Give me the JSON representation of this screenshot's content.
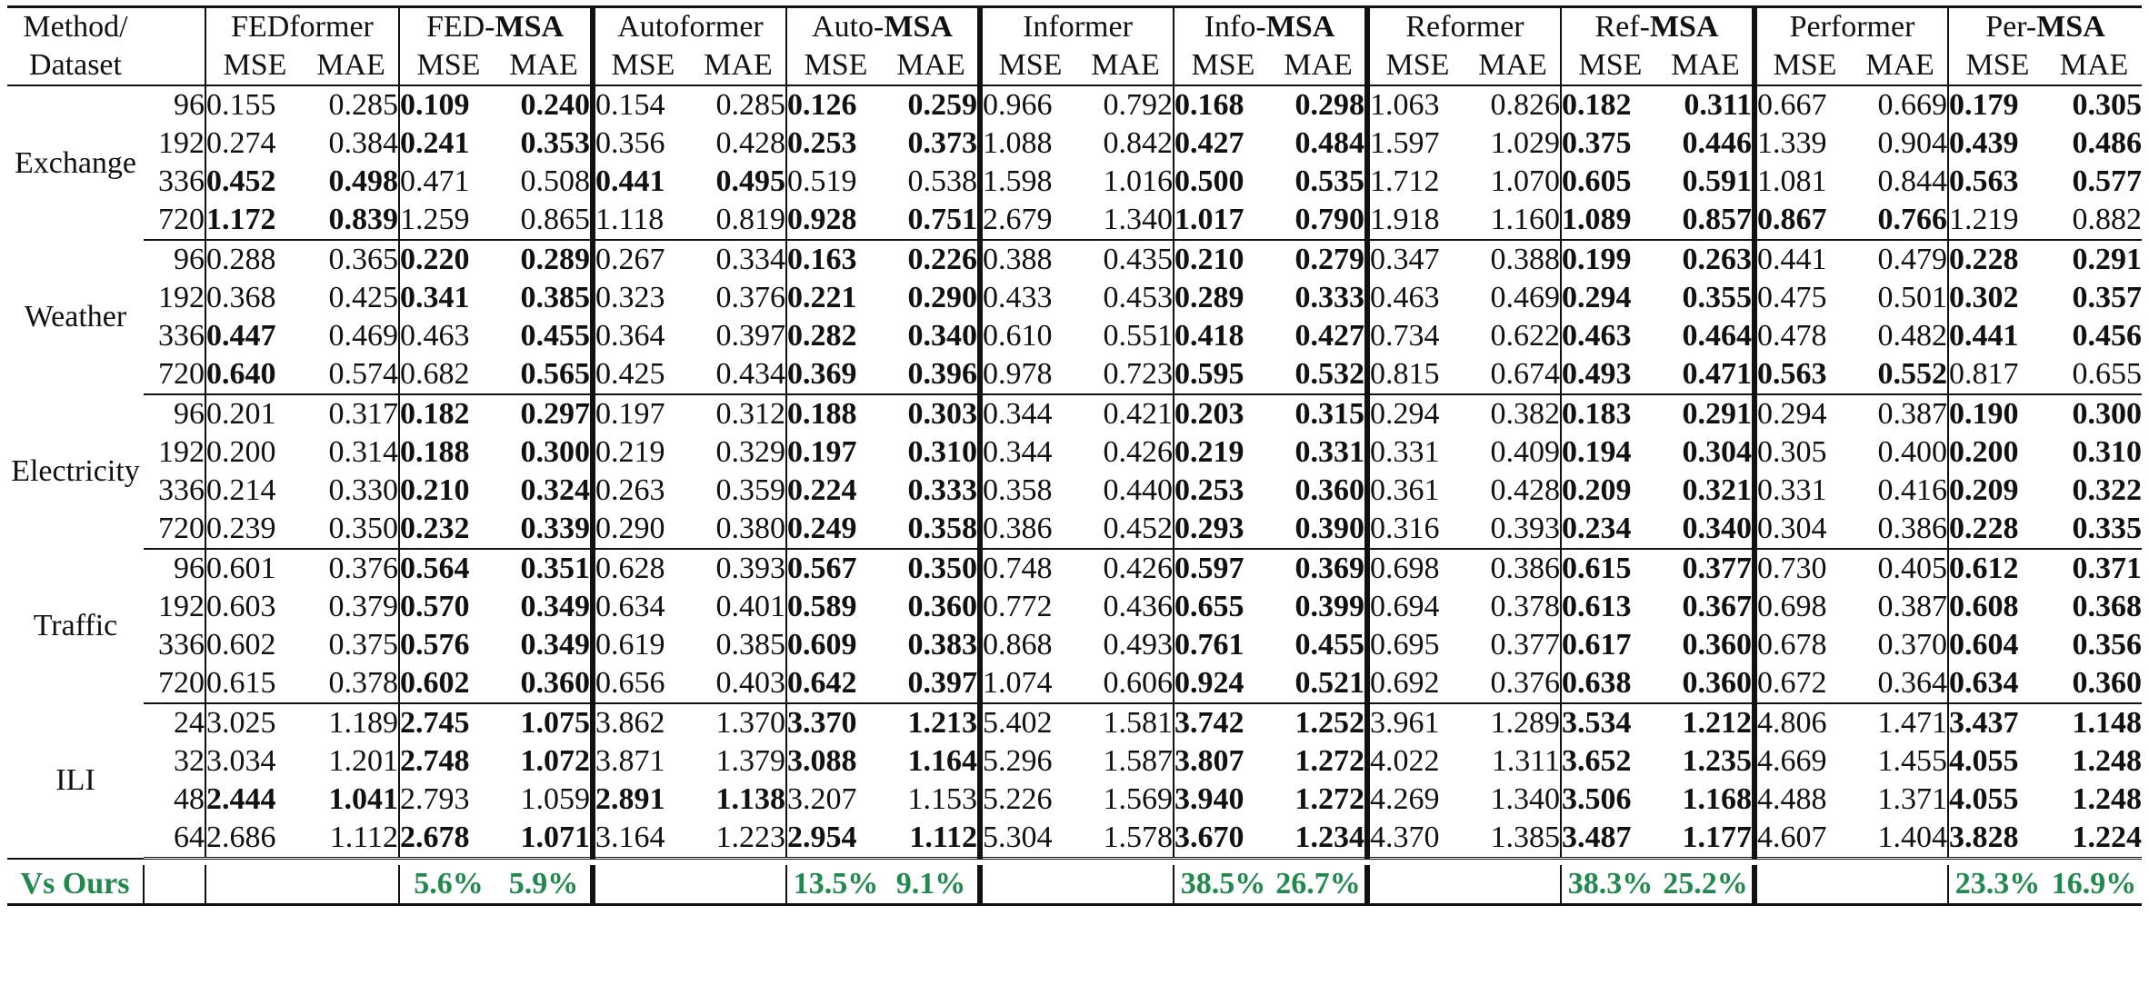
{
  "header": {
    "method_label_line1": "Method/",
    "method_label_line2": "Dataset",
    "mse_label": "MSE",
    "mae_label": "MAE",
    "groups": [
      {
        "name_prefix": "FEDformer",
        "name_bold": ""
      },
      {
        "name_prefix": "FED-",
        "name_bold": "MSA"
      },
      {
        "name_prefix": "Autoformer",
        "name_bold": ""
      },
      {
        "name_prefix": "Auto-",
        "name_bold": "MSA"
      },
      {
        "name_prefix": "Informer",
        "name_bold": ""
      },
      {
        "name_prefix": "Info-",
        "name_bold": "MSA"
      },
      {
        "name_prefix": "Reformer",
        "name_bold": ""
      },
      {
        "name_prefix": "Ref-",
        "name_bold": "MSA"
      },
      {
        "name_prefix": "Performer",
        "name_bold": ""
      },
      {
        "name_prefix": "Per-",
        "name_bold": "MSA"
      }
    ]
  },
  "datasets": [
    {
      "name": "Exchange",
      "rows": [
        {
          "len": "96",
          "vals": [
            "0.155",
            "0.285",
            "0.109",
            "0.240",
            "0.154",
            "0.285",
            "0.126",
            "0.259",
            "0.966",
            "0.792",
            "0.168",
            "0.298",
            "1.063",
            "0.826",
            "0.182",
            "0.311",
            "0.667",
            "0.669",
            "0.179",
            "0.305"
          ],
          "bold": [
            false,
            false,
            true,
            true,
            false,
            false,
            true,
            true,
            false,
            false,
            true,
            true,
            false,
            false,
            true,
            true,
            false,
            false,
            true,
            true
          ]
        },
        {
          "len": "192",
          "vals": [
            "0.274",
            "0.384",
            "0.241",
            "0.353",
            "0.356",
            "0.428",
            "0.253",
            "0.373",
            "1.088",
            "0.842",
            "0.427",
            "0.484",
            "1.597",
            "1.029",
            "0.375",
            "0.446",
            "1.339",
            "0.904",
            "0.439",
            "0.486"
          ],
          "bold": [
            false,
            false,
            true,
            true,
            false,
            false,
            true,
            true,
            false,
            false,
            true,
            true,
            false,
            false,
            true,
            true,
            false,
            false,
            true,
            true
          ]
        },
        {
          "len": "336",
          "vals": [
            "0.452",
            "0.498",
            "0.471",
            "0.508",
            "0.441",
            "0.495",
            "0.519",
            "0.538",
            "1.598",
            "1.016",
            "0.500",
            "0.535",
            "1.712",
            "1.070",
            "0.605",
            "0.591",
            "1.081",
            "0.844",
            "0.563",
            "0.577"
          ],
          "bold": [
            true,
            true,
            false,
            false,
            true,
            true,
            false,
            false,
            false,
            false,
            true,
            true,
            false,
            false,
            true,
            true,
            false,
            false,
            true,
            true
          ]
        },
        {
          "len": "720",
          "vals": [
            "1.172",
            "0.839",
            "1.259",
            "0.865",
            "1.118",
            "0.819",
            "0.928",
            "0.751",
            "2.679",
            "1.340",
            "1.017",
            "0.790",
            "1.918",
            "1.160",
            "1.089",
            "0.857",
            "0.867",
            "0.766",
            "1.219",
            "0.882"
          ],
          "bold": [
            true,
            true,
            false,
            false,
            false,
            false,
            true,
            true,
            false,
            false,
            true,
            true,
            false,
            false,
            true,
            true,
            true,
            true,
            false,
            false
          ]
        }
      ]
    },
    {
      "name": "Weather",
      "rows": [
        {
          "len": "96",
          "vals": [
            "0.288",
            "0.365",
            "0.220",
            "0.289",
            "0.267",
            "0.334",
            "0.163",
            "0.226",
            "0.388",
            "0.435",
            "0.210",
            "0.279",
            "0.347",
            "0.388",
            "0.199",
            "0.263",
            "0.441",
            "0.479",
            "0.228",
            "0.291"
          ],
          "bold": [
            false,
            false,
            true,
            true,
            false,
            false,
            true,
            true,
            false,
            false,
            true,
            true,
            false,
            false,
            true,
            true,
            false,
            false,
            true,
            true
          ]
        },
        {
          "len": "192",
          "vals": [
            "0.368",
            "0.425",
            "0.341",
            "0.385",
            "0.323",
            "0.376",
            "0.221",
            "0.290",
            "0.433",
            "0.453",
            "0.289",
            "0.333",
            "0.463",
            "0.469",
            "0.294",
            "0.355",
            "0.475",
            "0.501",
            "0.302",
            "0.357"
          ],
          "bold": [
            false,
            false,
            true,
            true,
            false,
            false,
            true,
            true,
            false,
            false,
            true,
            true,
            false,
            false,
            true,
            true,
            false,
            false,
            true,
            true
          ]
        },
        {
          "len": "336",
          "vals": [
            "0.447",
            "0.469",
            "0.463",
            "0.455",
            "0.364",
            "0.397",
            "0.282",
            "0.340",
            "0.610",
            "0.551",
            "0.418",
            "0.427",
            "0.734",
            "0.622",
            "0.463",
            "0.464",
            "0.478",
            "0.482",
            "0.441",
            "0.456"
          ],
          "bold": [
            true,
            false,
            false,
            true,
            false,
            false,
            true,
            true,
            false,
            false,
            true,
            true,
            false,
            false,
            true,
            true,
            false,
            false,
            true,
            true
          ]
        },
        {
          "len": "720",
          "vals": [
            "0.640",
            "0.574",
            "0.682",
            "0.565",
            "0.425",
            "0.434",
            "0.369",
            "0.396",
            "0.978",
            "0.723",
            "0.595",
            "0.532",
            "0.815",
            "0.674",
            "0.493",
            "0.471",
            "0.563",
            "0.552",
            "0.817",
            "0.655"
          ],
          "bold": [
            true,
            false,
            false,
            true,
            false,
            false,
            true,
            true,
            false,
            false,
            true,
            true,
            false,
            false,
            true,
            true,
            true,
            true,
            false,
            false
          ]
        }
      ]
    },
    {
      "name": "Electricity",
      "rows": [
        {
          "len": "96",
          "vals": [
            "0.201",
            "0.317",
            "0.182",
            "0.297",
            "0.197",
            "0.312",
            "0.188",
            "0.303",
            "0.344",
            "0.421",
            "0.203",
            "0.315",
            "0.294",
            "0.382",
            "0.183",
            "0.291",
            "0.294",
            "0.387",
            "0.190",
            "0.300"
          ],
          "bold": [
            false,
            false,
            true,
            true,
            false,
            false,
            true,
            true,
            false,
            false,
            true,
            true,
            false,
            false,
            true,
            true,
            false,
            false,
            true,
            true
          ]
        },
        {
          "len": "192",
          "vals": [
            "0.200",
            "0.314",
            "0.188",
            "0.300",
            "0.219",
            "0.329",
            "0.197",
            "0.310",
            "0.344",
            "0.426",
            "0.219",
            "0.331",
            "0.331",
            "0.409",
            "0.194",
            "0.304",
            "0.305",
            "0.400",
            "0.200",
            "0.310"
          ],
          "bold": [
            false,
            false,
            true,
            true,
            false,
            false,
            true,
            true,
            false,
            false,
            true,
            true,
            false,
            false,
            true,
            true,
            false,
            false,
            true,
            true
          ]
        },
        {
          "len": "336",
          "vals": [
            "0.214",
            "0.330",
            "0.210",
            "0.324",
            "0.263",
            "0.359",
            "0.224",
            "0.333",
            "0.358",
            "0.440",
            "0.253",
            "0.360",
            "0.361",
            "0.428",
            "0.209",
            "0.321",
            "0.331",
            "0.416",
            "0.209",
            "0.322"
          ],
          "bold": [
            false,
            false,
            true,
            true,
            false,
            false,
            true,
            true,
            false,
            false,
            true,
            true,
            false,
            false,
            true,
            true,
            false,
            false,
            true,
            true
          ]
        },
        {
          "len": "720",
          "vals": [
            "0.239",
            "0.350",
            "0.232",
            "0.339",
            "0.290",
            "0.380",
            "0.249",
            "0.358",
            "0.386",
            "0.452",
            "0.293",
            "0.390",
            "0.316",
            "0.393",
            "0.234",
            "0.340",
            "0.304",
            "0.386",
            "0.228",
            "0.335"
          ],
          "bold": [
            false,
            false,
            true,
            true,
            false,
            false,
            true,
            true,
            false,
            false,
            true,
            true,
            false,
            false,
            true,
            true,
            false,
            false,
            true,
            true
          ]
        }
      ]
    },
    {
      "name": "Traffic",
      "rows": [
        {
          "len": "96",
          "vals": [
            "0.601",
            "0.376",
            "0.564",
            "0.351",
            "0.628",
            "0.393",
            "0.567",
            "0.350",
            "0.748",
            "0.426",
            "0.597",
            "0.369",
            "0.698",
            "0.386",
            "0.615",
            "0.377",
            "0.730",
            "0.405",
            "0.612",
            "0.371"
          ],
          "bold": [
            false,
            false,
            true,
            true,
            false,
            false,
            true,
            true,
            false,
            false,
            true,
            true,
            false,
            false,
            true,
            true,
            false,
            false,
            true,
            true
          ]
        },
        {
          "len": "192",
          "vals": [
            "0.603",
            "0.379",
            "0.570",
            "0.349",
            "0.634",
            "0.401",
            "0.589",
            "0.360",
            "0.772",
            "0.436",
            "0.655",
            "0.399",
            "0.694",
            "0.378",
            "0.613",
            "0.367",
            "0.698",
            "0.387",
            "0.608",
            "0.368"
          ],
          "bold": [
            false,
            false,
            true,
            true,
            false,
            false,
            true,
            true,
            false,
            false,
            true,
            true,
            false,
            false,
            true,
            true,
            false,
            false,
            true,
            true
          ]
        },
        {
          "len": "336",
          "vals": [
            "0.602",
            "0.375",
            "0.576",
            "0.349",
            "0.619",
            "0.385",
            "0.609",
            "0.383",
            "0.868",
            "0.493",
            "0.761",
            "0.455",
            "0.695",
            "0.377",
            "0.617",
            "0.360",
            "0.678",
            "0.370",
            "0.604",
            "0.356"
          ],
          "bold": [
            false,
            false,
            true,
            true,
            false,
            false,
            true,
            true,
            false,
            false,
            true,
            true,
            false,
            false,
            true,
            true,
            false,
            false,
            true,
            true
          ]
        },
        {
          "len": "720",
          "vals": [
            "0.615",
            "0.378",
            "0.602",
            "0.360",
            "0.656",
            "0.403",
            "0.642",
            "0.397",
            "1.074",
            "0.606",
            "0.924",
            "0.521",
            "0.692",
            "0.376",
            "0.638",
            "0.360",
            "0.672",
            "0.364",
            "0.634",
            "0.360"
          ],
          "bold": [
            false,
            false,
            true,
            true,
            false,
            false,
            true,
            true,
            false,
            false,
            true,
            true,
            false,
            false,
            true,
            true,
            false,
            false,
            true,
            true
          ]
        }
      ]
    },
    {
      "name": "ILI",
      "rows": [
        {
          "len": "24",
          "vals": [
            "3.025",
            "1.189",
            "2.745",
            "1.075",
            "3.862",
            "1.370",
            "3.370",
            "1.213",
            "5.402",
            "1.581",
            "3.742",
            "1.252",
            "3.961",
            "1.289",
            "3.534",
            "1.212",
            "4.806",
            "1.471",
            "3.437",
            "1.148"
          ],
          "bold": [
            false,
            false,
            true,
            true,
            false,
            false,
            true,
            true,
            false,
            false,
            true,
            true,
            false,
            false,
            true,
            true,
            false,
            false,
            true,
            true
          ]
        },
        {
          "len": "32",
          "vals": [
            "3.034",
            "1.201",
            "2.748",
            "1.072",
            "3.871",
            "1.379",
            "3.088",
            "1.164",
            "5.296",
            "1.587",
            "3.807",
            "1.272",
            "4.022",
            "1.311",
            "3.652",
            "1.235",
            "4.669",
            "1.455",
            "4.055",
            "1.248"
          ],
          "bold": [
            false,
            false,
            true,
            true,
            false,
            false,
            true,
            true,
            false,
            false,
            true,
            true,
            false,
            false,
            true,
            true,
            false,
            false,
            true,
            true
          ]
        },
        {
          "len": "48",
          "vals": [
            "2.444",
            "1.041",
            "2.793",
            "1.059",
            "2.891",
            "1.138",
            "3.207",
            "1.153",
            "5.226",
            "1.569",
            "3.940",
            "1.272",
            "4.269",
            "1.340",
            "3.506",
            "1.168",
            "4.488",
            "1.371",
            "4.055",
            "1.248"
          ],
          "bold": [
            true,
            true,
            false,
            false,
            true,
            true,
            false,
            false,
            false,
            false,
            true,
            true,
            false,
            false,
            true,
            true,
            false,
            false,
            true,
            true
          ]
        },
        {
          "len": "64",
          "vals": [
            "2.686",
            "1.112",
            "2.678",
            "1.071",
            "3.164",
            "1.223",
            "2.954",
            "1.112",
            "5.304",
            "1.578",
            "3.670",
            "1.234",
            "4.370",
            "1.385",
            "3.487",
            "1.177",
            "4.607",
            "1.404",
            "3.828",
            "1.224"
          ],
          "bold": [
            false,
            false,
            true,
            true,
            false,
            false,
            true,
            true,
            false,
            false,
            true,
            true,
            false,
            false,
            true,
            true,
            false,
            false,
            true,
            true
          ]
        }
      ]
    }
  ],
  "vs_ours": {
    "label": "Vs Ours",
    "improvements": [
      {
        "mse": "5.6%",
        "mae": "5.9%"
      },
      {
        "mse": "13.5%",
        "mae": "9.1%"
      },
      {
        "mse": "38.5%",
        "mae": "26.7%"
      },
      {
        "mse": "38.3%",
        "mae": "25.2%"
      },
      {
        "mse": "23.3%",
        "mae": "16.9%"
      }
    ]
  },
  "colors": {
    "highlight": "#1f8a4c",
    "text": "#111111"
  }
}
